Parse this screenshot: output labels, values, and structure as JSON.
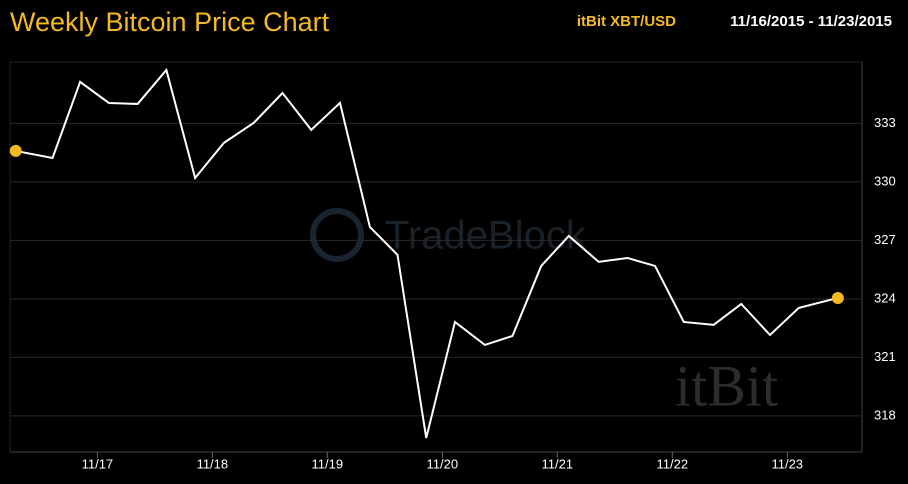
{
  "chart_data": {
    "type": "line",
    "title": "Weekly Bitcoin Price Chart",
    "pair": "itBit XBT/USD",
    "date_range": "11/16/2015 - 11/23/2015",
    "watermarks": [
      "TradeBlock",
      "itBit"
    ],
    "x": [
      0.29,
      0.61,
      0.85,
      1.1,
      1.35,
      1.6,
      1.85,
      2.1,
      2.36,
      2.61,
      2.86,
      3.11,
      3.37,
      3.61,
      3.86,
      4.11,
      4.37,
      4.61,
      4.86,
      5.1,
      5.36,
      5.61,
      5.85,
      6.1,
      6.36,
      6.6,
      6.85,
      7.1,
      7.44
    ],
    "series": [
      {
        "name": "XBT/USD",
        "color": "#ffffff",
        "values": [
          331.59,
          331.23,
          335.13,
          334.05,
          334.0,
          335.74,
          330.2,
          332.0,
          333.03,
          334.56,
          332.67,
          334.05,
          327.69,
          326.26,
          316.87,
          322.82,
          321.64,
          322.1,
          325.69,
          327.23,
          325.9,
          326.1,
          325.69,
          322.82,
          322.67,
          323.74,
          322.15,
          323.54,
          324.05
        ]
      }
    ],
    "endpoint_color": "#f5b921",
    "xlim": [
      0.24,
      7.65
    ],
    "xticks": [
      {
        "value": 1,
        "label": "11/17"
      },
      {
        "value": 2,
        "label": "11/18"
      },
      {
        "value": 3,
        "label": "11/19"
      },
      {
        "value": 4,
        "label": "11/20"
      },
      {
        "value": 5,
        "label": "11/21"
      },
      {
        "value": 6,
        "label": "11/22"
      },
      {
        "value": 7,
        "label": "11/23"
      }
    ],
    "ylim": [
      316.15,
      336.15
    ],
    "yticks": [
      318,
      321,
      324,
      327,
      330,
      333
    ],
    "grid": true
  }
}
